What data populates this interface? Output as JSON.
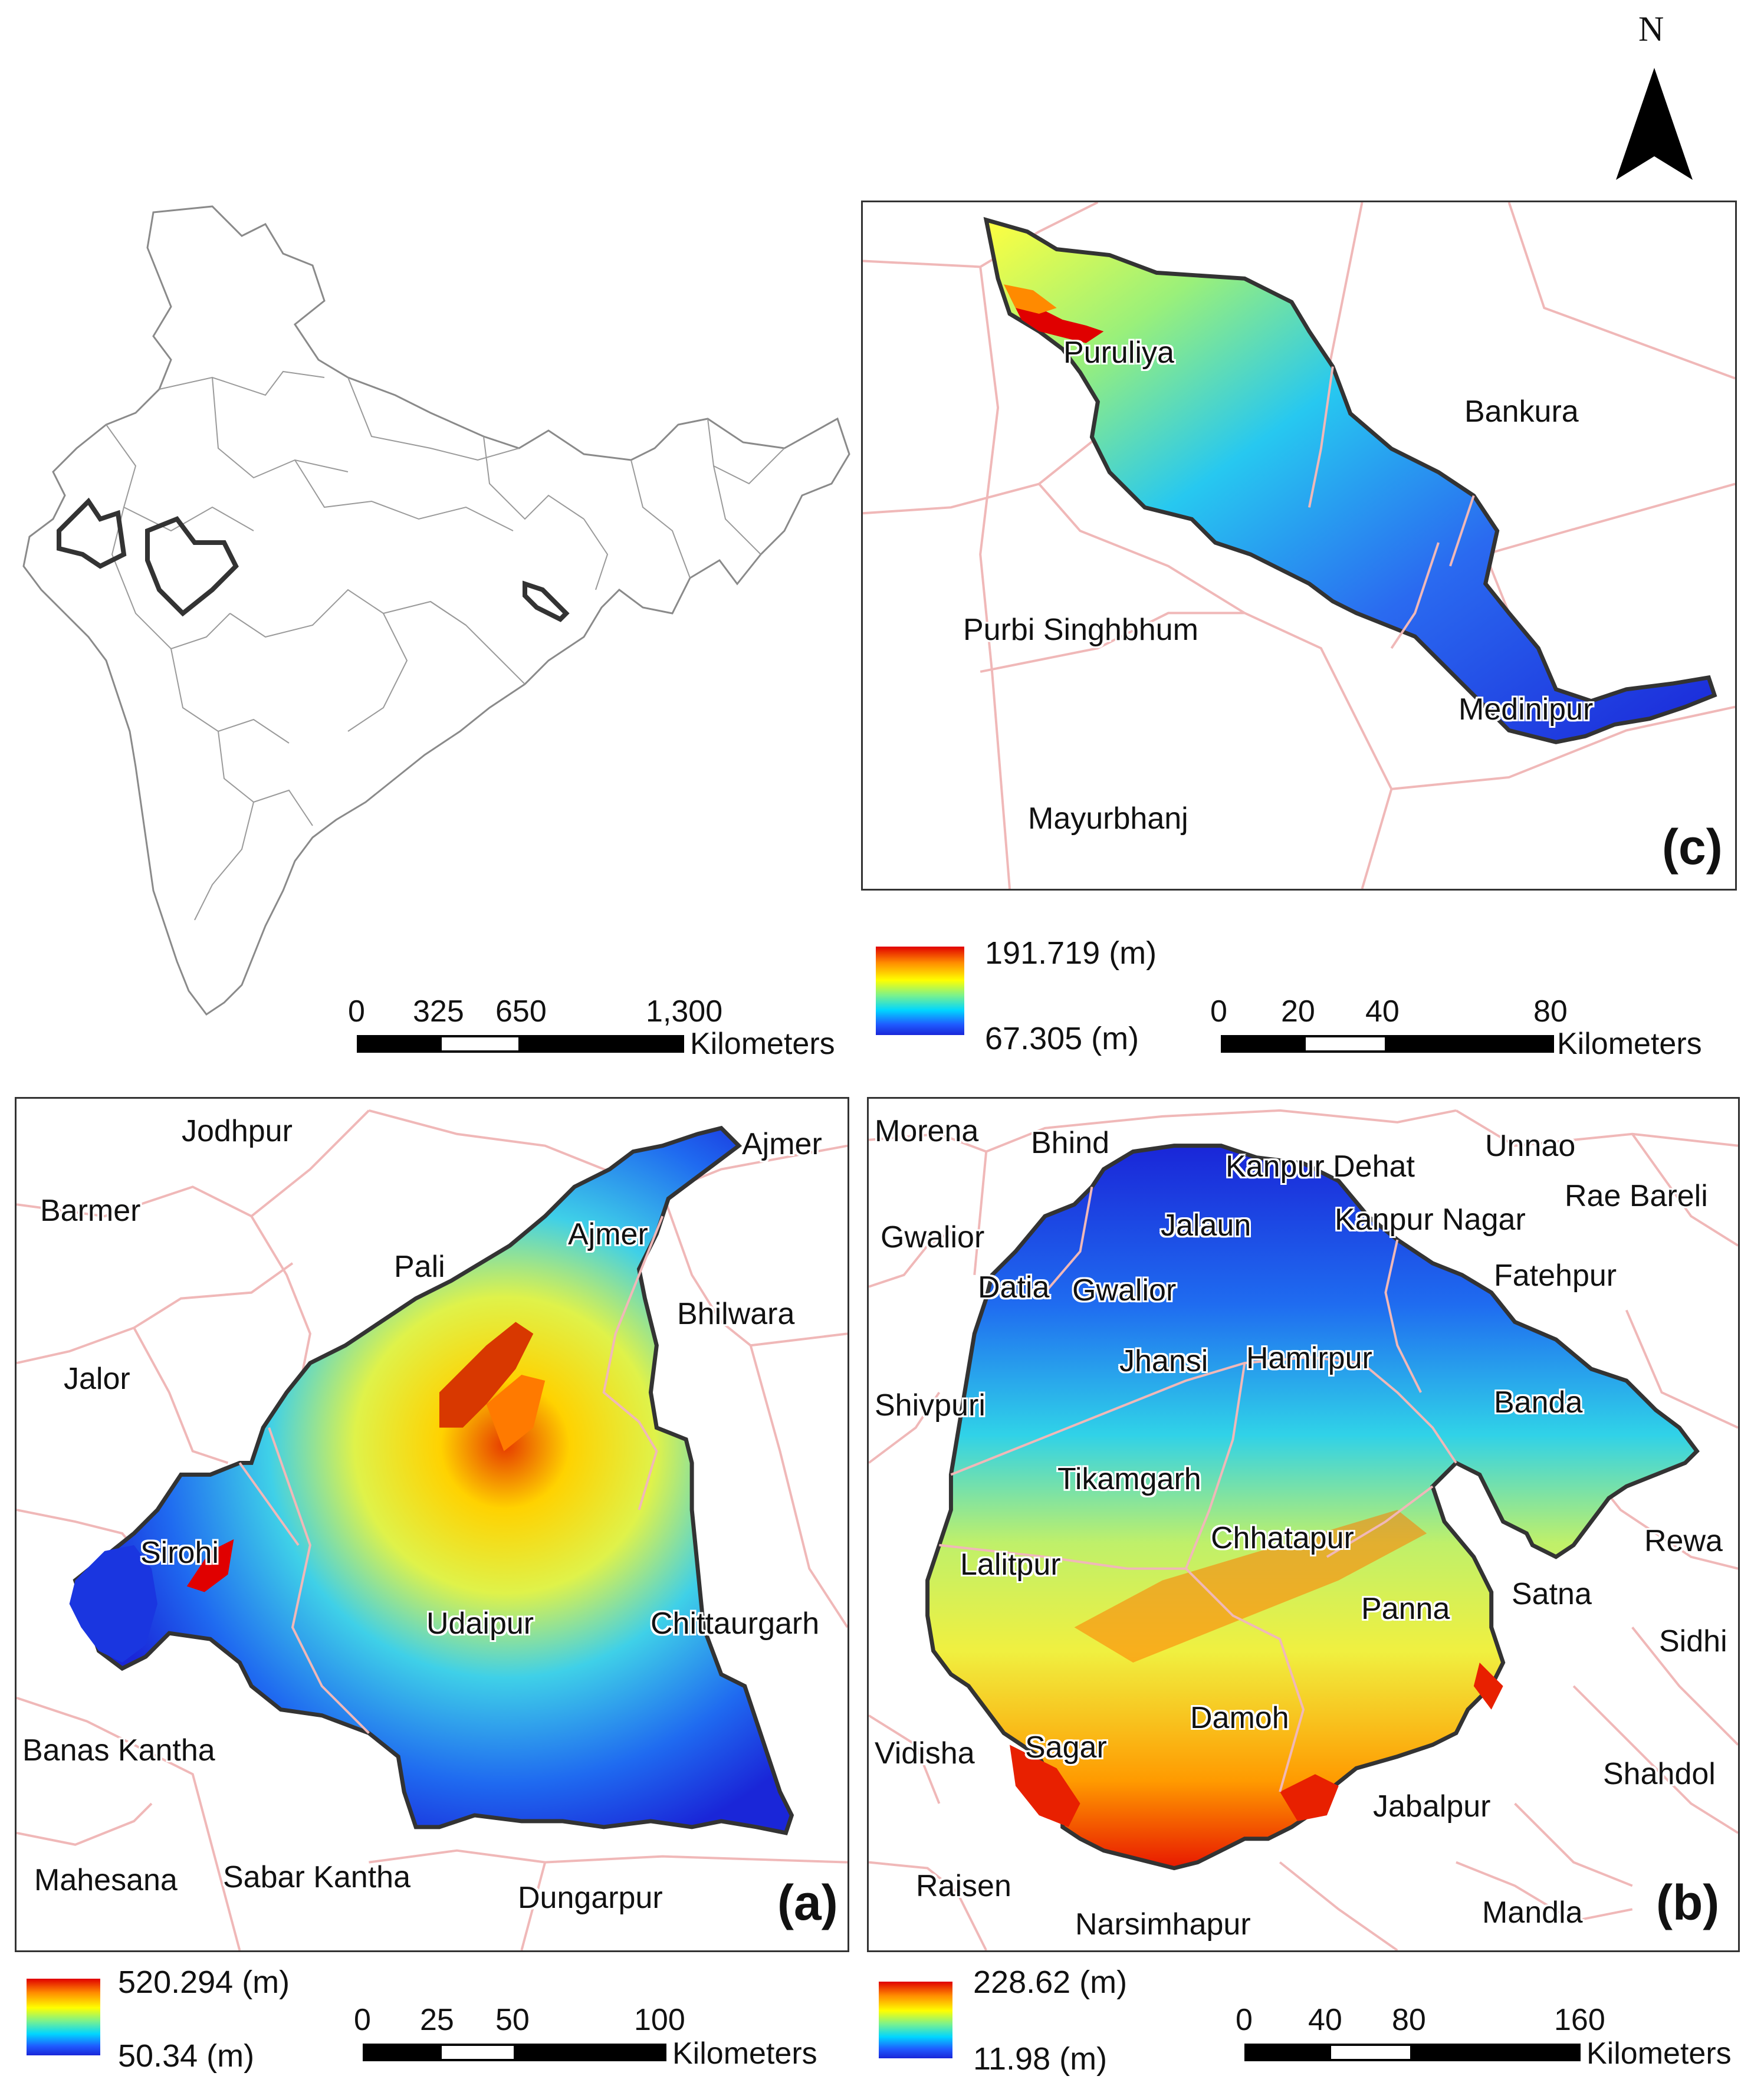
{
  "north_arrow": {
    "label": "N"
  },
  "panel_a": {
    "tag": "(a)",
    "districts": [
      "Jodhpur",
      "Ajmer",
      "Barmer",
      "Pali",
      "Ajmer",
      "Bhilwara",
      "Jalor",
      "Sirohi",
      "Udaipur",
      "Chittaurgarh",
      "Banas Kantha",
      "Mahesana",
      "Sabar Kantha",
      "Dungarpur"
    ],
    "legend": {
      "max": "520.294 (m)",
      "min": "50.34 (m)"
    },
    "scale": {
      "ticks": [
        "0",
        "25",
        "50",
        "100"
      ],
      "unit": "Kilometers"
    }
  },
  "panel_b": {
    "tag": "(b)",
    "districts": [
      "Morena",
      "Bhind",
      "Kanpur Dehat",
      "Unnao",
      "Rae Bareli",
      "Gwalior",
      "Jalaun",
      "Kanpur Nagar",
      "Fatehpur",
      "Datia",
      "Gwalior",
      "Jhansi",
      "Hamirpur",
      "Shivpuri",
      "Banda",
      "Tikamgarh",
      "Chhatapur",
      "Rewa",
      "Lalitpur",
      "Satna",
      "Panna",
      "Sidhi",
      "Damoh",
      "Vidisha",
      "Sagar",
      "Shahdol",
      "Jabalpur",
      "Raisen",
      "Mandla",
      "Narsimhapur"
    ],
    "legend": {
      "max": "228.62 (m)",
      "min": "11.98 (m)"
    },
    "scale": {
      "ticks": [
        "0",
        "40",
        "80",
        "160"
      ],
      "unit": "Kilometers"
    }
  },
  "panel_c": {
    "tag": "(c)",
    "districts": [
      "Puruliya",
      "Bankura",
      "Purbi Singhbhum",
      "Medinipur",
      "Mayurbhanj"
    ],
    "legend": {
      "max": "191.719 (m)",
      "min": "67.305 (m)"
    },
    "scale": {
      "ticks": [
        "0",
        "20",
        "40",
        "80"
      ],
      "unit": "Kilometers"
    }
  },
  "india_map": {
    "scale": {
      "ticks": [
        "0",
        "325",
        "650",
        "1,300"
      ],
      "unit": "Kilometers"
    }
  },
  "colors": {
    "district_border": "#f0b8b8",
    "basin_outline": "#333333",
    "high": "#e00000",
    "low": "#1a26d8"
  }
}
